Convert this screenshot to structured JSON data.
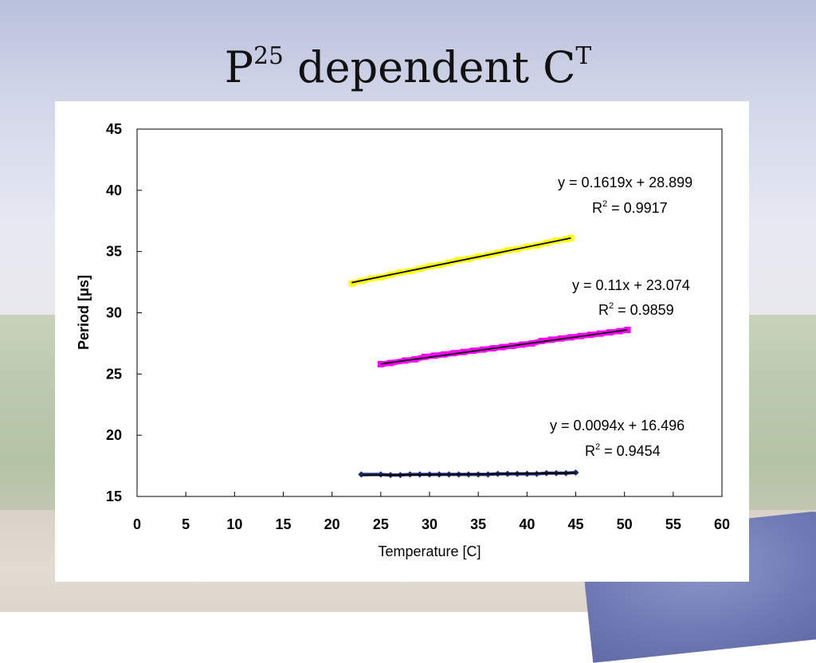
{
  "slide": {
    "title_base": "P",
    "title_sup": "25",
    "title_mid": " dependent C",
    "title_sup2": "T"
  },
  "colors": {
    "yellow_series": "#ffff00",
    "magenta_series": "#ff00ff",
    "navy_series": "#1a2a6c",
    "trendline": "#000000"
  },
  "chart_data": {
    "type": "scatter",
    "xlabel": "Temperature [C]",
    "ylabel": "Period [μs]",
    "xlim": [
      0,
      60
    ],
    "ylim": [
      15,
      45
    ],
    "xticks": [
      0,
      5,
      10,
      15,
      20,
      25,
      30,
      35,
      40,
      45,
      50,
      55,
      60
    ],
    "yticks": [
      15,
      20,
      25,
      30,
      35,
      40,
      45
    ],
    "grid": false,
    "series": [
      {
        "color": "#ffff00",
        "marker": "square",
        "x": [
          22.0,
          23,
          24,
          25,
          26,
          27,
          28,
          29,
          30,
          31,
          32,
          33,
          34,
          35,
          36,
          37,
          38,
          39,
          40,
          41,
          42,
          43,
          44,
          44.5
        ],
        "y": [
          32.4,
          32.6,
          32.8,
          32.9,
          33.1,
          33.3,
          33.4,
          33.6,
          33.8,
          33.9,
          34.1,
          34.3,
          34.4,
          34.6,
          34.7,
          34.9,
          35.1,
          35.2,
          35.4,
          35.5,
          35.7,
          35.9,
          36.0,
          36.1
        ],
        "fit_equation": "y = 0.1619x + 28.899",
        "r2_label": "R",
        "r2_sup": "2",
        "r2_value": " = 0.9917",
        "fit": {
          "slope": 0.1619,
          "intercept": 28.899,
          "x_from": 22.0,
          "x_to": 44.5
        }
      },
      {
        "color": "#ff00ff",
        "marker": "square",
        "x": [
          25.0,
          26,
          27.5,
          28.5,
          29.5,
          30.5,
          31.5,
          32.5,
          33.5,
          34.5,
          35.5,
          36.5,
          37.5,
          38.5,
          39.5,
          40.5,
          41.5,
          42.5,
          43.5,
          44.5,
          45.5,
          46.5,
          47.5,
          48.5,
          49.5,
          50.3
        ],
        "y": [
          25.8,
          25.9,
          26.1,
          26.2,
          26.4,
          26.5,
          26.6,
          26.7,
          26.8,
          26.9,
          27.0,
          27.1,
          27.2,
          27.3,
          27.4,
          27.5,
          27.7,
          27.8,
          27.9,
          28.0,
          28.1,
          28.2,
          28.3,
          28.4,
          28.5,
          28.6
        ],
        "fit_equation": "y = 0.11x + 23.074",
        "r2_label": "R",
        "r2_sup": "2",
        "r2_value": " = 0.9859",
        "fit": {
          "slope": 0.11,
          "intercept": 23.074,
          "x_from": 25.0,
          "x_to": 50.3
        }
      },
      {
        "color": "#1a2a6c",
        "marker": "diamond",
        "x": [
          23.0,
          25.0,
          26,
          27,
          28,
          29,
          30,
          31,
          32,
          33,
          34,
          35,
          36,
          37,
          38,
          39,
          40,
          41,
          42,
          43,
          44,
          45
        ],
        "y": [
          16.8,
          16.8,
          16.75,
          16.75,
          16.8,
          16.8,
          16.8,
          16.8,
          16.8,
          16.8,
          16.8,
          16.8,
          16.8,
          16.85,
          16.85,
          16.85,
          16.85,
          16.85,
          16.9,
          16.9,
          16.9,
          16.95
        ],
        "fit_equation": "y = 0.0094x + 16.496",
        "r2_label": "R",
        "r2_sup": "2",
        "r2_value": " = 0.9454",
        "fit": {
          "slope": 0.0094,
          "intercept": 16.496,
          "x_from": 23.0,
          "x_to": 45.0
        }
      }
    ]
  }
}
